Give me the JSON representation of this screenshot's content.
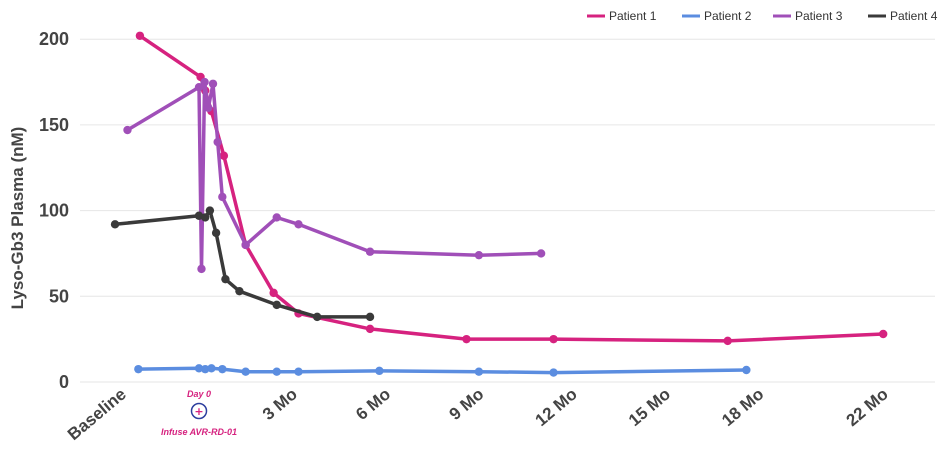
{
  "chart_data": {
    "type": "line",
    "title": "",
    "ylabel": "Lyso-Gb3 Plasma (nM)",
    "xlabel": "",
    "ylim": [
      0,
      215
    ],
    "yticks": [
      0,
      50,
      100,
      150,
      200
    ],
    "grid": "horizontal",
    "legend_position": "top-right",
    "x_tick_labels": [
      "Baseline",
      "3 Mo",
      "6 Mo",
      "9 Mo",
      "12 Mo",
      "15 Mo",
      "18 Mo",
      "22 Mo"
    ],
    "x_tick_months": [
      -2.5,
      3,
      6,
      9,
      12,
      15,
      18,
      22
    ],
    "x_unit": "months since infusion",
    "series": [
      {
        "name": "Patient 1",
        "color": "#d6227f",
        "points": [
          [
            -1.9,
            202
          ],
          [
            0.05,
            178
          ],
          [
            0.2,
            170
          ],
          [
            0.4,
            158
          ],
          [
            0.8,
            132
          ],
          [
            1.5,
            80
          ],
          [
            2.4,
            52
          ],
          [
            3.2,
            40
          ],
          [
            5.5,
            31
          ],
          [
            8.6,
            25
          ],
          [
            11.4,
            25
          ],
          [
            17.0,
            24
          ],
          [
            22.0,
            28
          ]
        ]
      },
      {
        "name": "Patient 2",
        "color": "#5b8de0",
        "points": [
          [
            -1.95,
            7.5
          ],
          [
            0.0,
            8
          ],
          [
            0.2,
            7.5
          ],
          [
            0.4,
            8
          ],
          [
            0.75,
            7.5
          ],
          [
            1.5,
            6
          ],
          [
            2.5,
            6
          ],
          [
            3.2,
            6
          ],
          [
            5.8,
            6.5
          ],
          [
            9.0,
            6
          ],
          [
            11.4,
            5.5
          ],
          [
            17.6,
            7
          ]
        ]
      },
      {
        "name": "Patient 3",
        "color": "#a04fb8",
        "points": [
          [
            -2.3,
            147
          ],
          [
            0.0,
            172
          ],
          [
            0.08,
            66
          ],
          [
            0.18,
            175
          ],
          [
            0.3,
            160
          ],
          [
            0.45,
            174
          ],
          [
            0.6,
            140
          ],
          [
            0.75,
            108
          ],
          [
            1.5,
            80
          ],
          [
            2.5,
            96
          ],
          [
            3.2,
            92
          ],
          [
            5.5,
            76
          ],
          [
            9.0,
            74
          ],
          [
            11.0,
            75
          ]
        ]
      },
      {
        "name": "Patient 4",
        "color": "#3a3a3a",
        "points": [
          [
            -2.7,
            92
          ],
          [
            0.0,
            97
          ],
          [
            0.2,
            96
          ],
          [
            0.35,
            100
          ],
          [
            0.55,
            87
          ],
          [
            0.85,
            60
          ],
          [
            1.3,
            53
          ],
          [
            2.5,
            45
          ],
          [
            3.8,
            38
          ],
          [
            5.5,
            38
          ]
        ]
      }
    ],
    "annotation": {
      "top_label": "Day 0",
      "bottom_label": "Infuse AVR-RD-01",
      "color": "#d6227f",
      "marker_color": "#2c3e9e",
      "x_month": 0.0
    }
  }
}
